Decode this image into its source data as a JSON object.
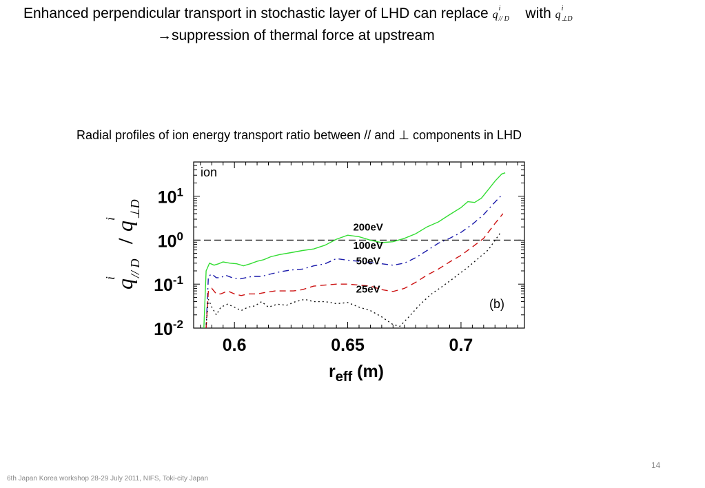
{
  "slide": {
    "title_line1_text": "Enhanced perpendicular transport in stochastic layer of LHD can replace",
    "title_line1_with": "with",
    "title_line2_arrow": "→",
    "title_line2_text": "suppression of thermal force at upstream",
    "caption": "Radial profiles of ion energy transport ratio between // and ⊥ components in LHD",
    "footer": "6th Japan Korea workshop 28-29 July 2011, NIFS, Toki-city  Japan",
    "page_number": "14",
    "math_q": "q",
    "math_sup": "i",
    "math_sub_par": "// D",
    "math_sub_perp": "⊥D"
  },
  "chart_data": {
    "type": "line",
    "x_scale": "linear",
    "y_scale": "log",
    "xlim": [
      0.582,
      0.728
    ],
    "ylim": [
      0.01,
      60
    ],
    "x_ticks": [
      0.6,
      0.65,
      0.7
    ],
    "x_tick_labels": [
      "0.6",
      "0.65",
      "0.7"
    ],
    "y_ticks": [
      0.01,
      0.1,
      1,
      10
    ],
    "y_tick_labels": [
      {
        "base": "10",
        "exp": "-2"
      },
      {
        "base": "10",
        "exp": "-1"
      },
      {
        "base": "10",
        "exp": "0"
      },
      {
        "base": "10",
        "exp": "1"
      }
    ],
    "xlabel": {
      "main": "r",
      "sub": "eff",
      "unit": " (m)"
    },
    "ylabel": {
      "q": "q",
      "sup": "i",
      "sub_num": "// D",
      "slash": "/",
      "sub_den": "⊥D"
    },
    "reference_line": {
      "y": 1.0,
      "style": "dashed",
      "color": "#222222"
    },
    "annotations": {
      "top_left": "ion",
      "panel": "(b)"
    },
    "series": [
      {
        "name": "200eV",
        "color": "#33dd33",
        "dash": "solid",
        "label_at": [
          0.659,
          1.65
        ],
        "points": [
          [
            0.5865,
            0.01
          ],
          [
            0.5875,
            0.2
          ],
          [
            0.589,
            0.3
          ],
          [
            0.591,
            0.27
          ],
          [
            0.593,
            0.29
          ],
          [
            0.595,
            0.32
          ],
          [
            0.598,
            0.3
          ],
          [
            0.601,
            0.29
          ],
          [
            0.604,
            0.26
          ],
          [
            0.607,
            0.29
          ],
          [
            0.61,
            0.33
          ],
          [
            0.613,
            0.36
          ],
          [
            0.616,
            0.42
          ],
          [
            0.62,
            0.47
          ],
          [
            0.625,
            0.52
          ],
          [
            0.63,
            0.58
          ],
          [
            0.635,
            0.63
          ],
          [
            0.64,
            0.77
          ],
          [
            0.645,
            1.05
          ],
          [
            0.65,
            1.3
          ],
          [
            0.655,
            1.2
          ],
          [
            0.66,
            1.0
          ],
          [
            0.665,
            0.88
          ],
          [
            0.67,
            0.92
          ],
          [
            0.675,
            1.1
          ],
          [
            0.68,
            1.4
          ],
          [
            0.685,
            2.0
          ],
          [
            0.69,
            2.6
          ],
          [
            0.695,
            3.8
          ],
          [
            0.7,
            5.5
          ],
          [
            0.703,
            7.5
          ],
          [
            0.706,
            7.2
          ],
          [
            0.709,
            9.0
          ],
          [
            0.712,
            14.0
          ],
          [
            0.715,
            22.0
          ],
          [
            0.718,
            32.0
          ],
          [
            0.7195,
            34.0
          ]
        ]
      },
      {
        "name": "100eV",
        "color": "#1a1aaa",
        "dash": "9,5,2,5",
        "label_at": [
          0.659,
          0.63
        ],
        "points": [
          [
            0.5875,
            0.01
          ],
          [
            0.5885,
            0.15
          ],
          [
            0.59,
            0.17
          ],
          [
            0.592,
            0.14
          ],
          [
            0.594,
            0.14
          ],
          [
            0.596,
            0.16
          ],
          [
            0.599,
            0.14
          ],
          [
            0.602,
            0.13
          ],
          [
            0.605,
            0.14
          ],
          [
            0.608,
            0.15
          ],
          [
            0.612,
            0.15
          ],
          [
            0.616,
            0.17
          ],
          [
            0.62,
            0.19
          ],
          [
            0.625,
            0.21
          ],
          [
            0.63,
            0.22
          ],
          [
            0.635,
            0.26
          ],
          [
            0.64,
            0.29
          ],
          [
            0.645,
            0.38
          ],
          [
            0.65,
            0.35
          ],
          [
            0.655,
            0.33
          ],
          [
            0.66,
            0.31
          ],
          [
            0.665,
            0.29
          ],
          [
            0.67,
            0.27
          ],
          [
            0.675,
            0.3
          ],
          [
            0.68,
            0.4
          ],
          [
            0.685,
            0.58
          ],
          [
            0.69,
            0.85
          ],
          [
            0.695,
            1.1
          ],
          [
            0.7,
            1.5
          ],
          [
            0.705,
            2.3
          ],
          [
            0.71,
            3.8
          ],
          [
            0.714,
            6.5
          ],
          [
            0.7175,
            10.0
          ]
        ]
      },
      {
        "name": "50eV",
        "color": "#cc1111",
        "dash": "9,6",
        "label_at": [
          0.659,
          0.28
        ],
        "points": [
          [
            0.5875,
            0.01
          ],
          [
            0.5885,
            0.07
          ],
          [
            0.59,
            0.08
          ],
          [
            0.592,
            0.06
          ],
          [
            0.594,
            0.06
          ],
          [
            0.597,
            0.07
          ],
          [
            0.6,
            0.06
          ],
          [
            0.603,
            0.055
          ],
          [
            0.606,
            0.06
          ],
          [
            0.61,
            0.06
          ],
          [
            0.614,
            0.065
          ],
          [
            0.618,
            0.07
          ],
          [
            0.622,
            0.07
          ],
          [
            0.626,
            0.07
          ],
          [
            0.63,
            0.075
          ],
          [
            0.635,
            0.09
          ],
          [
            0.64,
            0.095
          ],
          [
            0.645,
            0.1
          ],
          [
            0.65,
            0.1
          ],
          [
            0.655,
            0.095
          ],
          [
            0.66,
            0.09
          ],
          [
            0.665,
            0.075
          ],
          [
            0.67,
            0.068
          ],
          [
            0.675,
            0.08
          ],
          [
            0.68,
            0.11
          ],
          [
            0.685,
            0.16
          ],
          [
            0.69,
            0.22
          ],
          [
            0.695,
            0.32
          ],
          [
            0.7,
            0.45
          ],
          [
            0.705,
            0.7
          ],
          [
            0.71,
            1.1
          ],
          [
            0.715,
            2.4
          ],
          [
            0.7185,
            4.0
          ]
        ]
      },
      {
        "name": "25eV",
        "color": "#111111",
        "dash": "2,4",
        "label_at": [
          0.659,
          0.064
        ],
        "points": [
          [
            0.5875,
            0.012
          ],
          [
            0.5885,
            0.045
          ],
          [
            0.59,
            0.03
          ],
          [
            0.592,
            0.02
          ],
          [
            0.594,
            0.03
          ],
          [
            0.597,
            0.035
          ],
          [
            0.6,
            0.03
          ],
          [
            0.603,
            0.025
          ],
          [
            0.606,
            0.03
          ],
          [
            0.609,
            0.032
          ],
          [
            0.612,
            0.04
          ],
          [
            0.615,
            0.03
          ],
          [
            0.619,
            0.035
          ],
          [
            0.623,
            0.033
          ],
          [
            0.627,
            0.04
          ],
          [
            0.631,
            0.045
          ],
          [
            0.635,
            0.04
          ],
          [
            0.64,
            0.04
          ],
          [
            0.645,
            0.036
          ],
          [
            0.65,
            0.038
          ],
          [
            0.655,
            0.03
          ],
          [
            0.66,
            0.025
          ],
          [
            0.665,
            0.018
          ],
          [
            0.67,
            0.012
          ],
          [
            0.673,
            0.011
          ],
          [
            0.677,
            0.018
          ],
          [
            0.682,
            0.035
          ],
          [
            0.687,
            0.06
          ],
          [
            0.692,
            0.09
          ],
          [
            0.697,
            0.14
          ],
          [
            0.702,
            0.22
          ],
          [
            0.707,
            0.36
          ],
          [
            0.712,
            0.6
          ],
          [
            0.7175,
            1.5
          ]
        ]
      }
    ]
  }
}
